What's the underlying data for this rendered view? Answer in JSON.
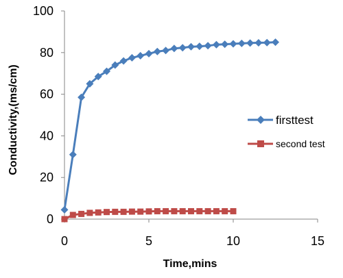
{
  "chart_data": {
    "type": "line",
    "xlabel": "Time,mins",
    "ylabel": "Conductivity,(ms/cm)",
    "xlim": [
      0,
      15
    ],
    "ylim": [
      0,
      100
    ],
    "xticks": [
      0,
      5,
      10,
      15
    ],
    "yticks": [
      0,
      20,
      40,
      60,
      80,
      100
    ],
    "grid": false,
    "legend_position": "right",
    "series": [
      {
        "name": "firsttest",
        "color": "#4a7ebb",
        "marker": "diamond",
        "x": [
          0,
          0.5,
          1,
          1.5,
          2,
          2.5,
          3,
          3.5,
          4,
          4.5,
          5,
          5.5,
          6,
          6.5,
          7,
          7.5,
          8,
          8.5,
          9,
          9.5,
          10,
          10.5,
          11,
          11.5,
          12,
          12.5
        ],
        "y": [
          4.5,
          31,
          58.5,
          65,
          68.5,
          71,
          74,
          76,
          77.5,
          78.5,
          79.5,
          80.5,
          81,
          82,
          82.3,
          82.8,
          83,
          83.3,
          83.8,
          84,
          84.2,
          84.4,
          84.6,
          84.7,
          84.8,
          85
        ]
      },
      {
        "name": "second test",
        "color": "#be4b48",
        "marker": "square",
        "x": [
          0,
          0.5,
          1,
          1.5,
          2,
          2.5,
          3,
          3.5,
          4,
          4.5,
          5,
          5.5,
          6,
          6.5,
          7,
          7.5,
          8,
          8.5,
          9,
          9.5,
          10
        ],
        "y": [
          0,
          2,
          2.5,
          3,
          3.2,
          3.4,
          3.5,
          3.5,
          3.6,
          3.6,
          3.7,
          3.8,
          3.8,
          3.8,
          3.8,
          3.8,
          3.8,
          3.8,
          3.8,
          3.8,
          3.8
        ]
      }
    ]
  }
}
